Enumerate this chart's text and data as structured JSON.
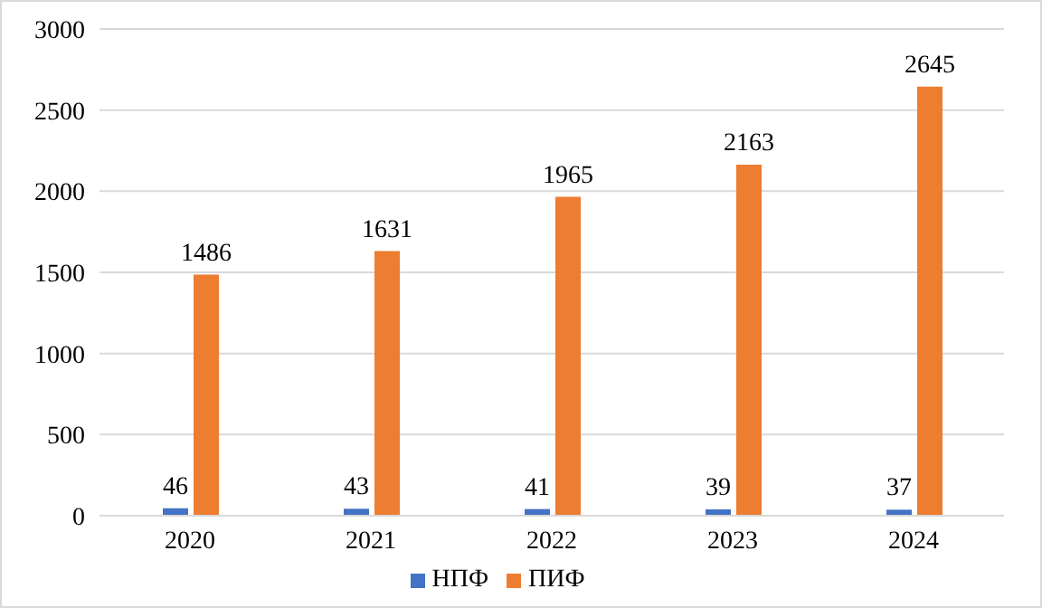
{
  "chart_data": {
    "type": "bar",
    "categories": [
      "2020",
      "2021",
      "2022",
      "2023",
      "2024"
    ],
    "series": [
      {
        "name": "НПФ",
        "color": "#4472c4",
        "values": [
          46,
          43,
          41,
          39,
          37
        ]
      },
      {
        "name": "ПИФ",
        "color": "#ed7d31",
        "values": [
          1486,
          1631,
          1965,
          2163,
          2645
        ]
      }
    ],
    "ylim": [
      0,
      3000
    ],
    "yticks": [
      0,
      500,
      1000,
      1500,
      2000,
      2500,
      3000
    ],
    "grid": "y",
    "legend": "bottom",
    "data_labels": true
  }
}
